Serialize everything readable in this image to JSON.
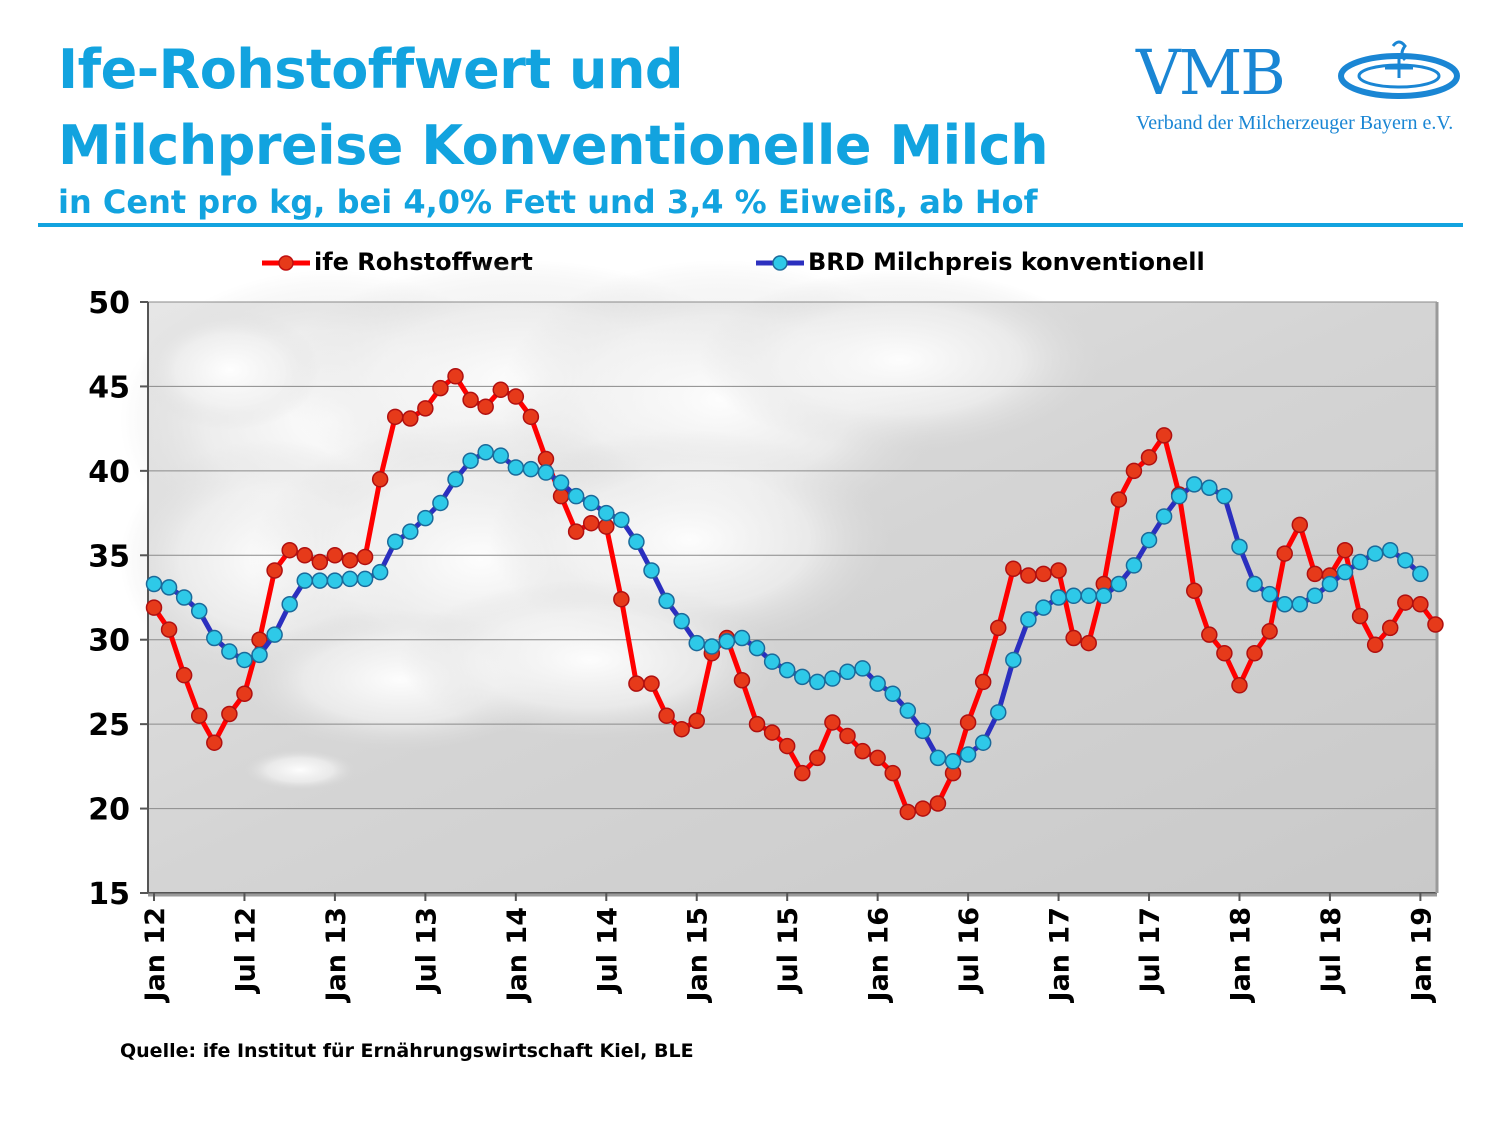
{
  "header": {
    "title_line1": "Ife-Rohstoffwert und",
    "title_line2": "Milchpreise Konventionelle Milch",
    "subtitle": "in Cent pro kg, bei 4,0% Fett und 3,4 % Eiweiß, ab Hof"
  },
  "logo": {
    "name": "VMB",
    "tagline": "Verband der Milcherzeuger Bayern e.V."
  },
  "source": "Quelle: ife Institut für Ernährungswirtschaft Kiel, BLE",
  "colors": {
    "title": "#12a3df",
    "red_series": "#ff0000",
    "red_marker": "#e63a1a",
    "blue_series": "#2b2fbf",
    "blue_marker": "#2ec9e8"
  },
  "chart_data": {
    "type": "line",
    "title": "",
    "xlabel": "",
    "ylabel": "",
    "ylim": [
      15,
      50
    ],
    "yticks": [
      15,
      20,
      25,
      30,
      35,
      40,
      45,
      50
    ],
    "grid": true,
    "legend_placement": "top",
    "x_start": "Jan 12",
    "x_tick_labels": [
      "Jan 12",
      "Jul 12",
      "Jan 13",
      "Jul 13",
      "Jan 14",
      "Jul 14",
      "Jan 15",
      "Jul 15",
      "Jan 16",
      "Jul 16",
      "Jan 17",
      "Jul 17",
      "Jan 18",
      "Jul 18",
      "Jan 19"
    ],
    "series": [
      {
        "name": "ife Rohstoffwert",
        "values": [
          31.9,
          30.6,
          27.9,
          25.5,
          23.9,
          25.6,
          26.8,
          30.0,
          34.1,
          35.3,
          35.0,
          34.6,
          35.0,
          34.7,
          34.9,
          39.5,
          43.2,
          43.1,
          43.7,
          44.9,
          45.6,
          44.2,
          43.8,
          44.8,
          44.4,
          43.2,
          40.7,
          38.5,
          36.4,
          36.9,
          36.7,
          32.4,
          27.4,
          27.4,
          25.5,
          24.7,
          25.2,
          29.2,
          30.1,
          27.6,
          25.0,
          24.5,
          23.7,
          22.1,
          23.0,
          25.1,
          24.3,
          23.4,
          23.0,
          22.1,
          19.8,
          20.0,
          20.3,
          22.1,
          25.1,
          27.5,
          30.7,
          34.2,
          33.8,
          33.9,
          34.1,
          30.1,
          29.8,
          33.3,
          38.3,
          40.0,
          40.8,
          42.1,
          38.6,
          32.9,
          30.3,
          29.2,
          27.3,
          29.2,
          30.5,
          35.1,
          36.8,
          33.9,
          33.8,
          35.3,
          31.4,
          29.7,
          30.7,
          32.2,
          32.1,
          30.9
        ]
      },
      {
        "name": "BRD Milchpreis konventionell",
        "values": [
          33.3,
          33.1,
          32.5,
          31.7,
          30.1,
          29.3,
          28.8,
          29.1,
          30.3,
          32.1,
          33.5,
          33.5,
          33.5,
          33.6,
          33.6,
          34.0,
          35.8,
          36.4,
          37.2,
          38.1,
          39.5,
          40.6,
          41.1,
          40.9,
          40.2,
          40.1,
          39.9,
          39.3,
          38.5,
          38.1,
          37.5,
          37.1,
          35.8,
          34.1,
          32.3,
          31.1,
          29.8,
          29.6,
          29.9,
          30.1,
          29.5,
          28.7,
          28.2,
          27.8,
          27.5,
          27.7,
          28.1,
          28.3,
          27.4,
          26.8,
          25.8,
          24.6,
          23.0,
          22.8,
          23.2,
          23.9,
          25.7,
          28.8,
          31.2,
          31.9,
          32.5,
          32.6,
          32.6,
          32.6,
          33.3,
          34.4,
          35.9,
          37.3,
          38.5,
          39.2,
          39.0,
          38.5,
          35.5,
          33.3,
          32.7,
          32.1,
          32.1,
          32.6,
          33.3,
          34.0,
          34.6,
          35.1,
          35.3,
          34.7,
          33.9
        ]
      }
    ]
  }
}
